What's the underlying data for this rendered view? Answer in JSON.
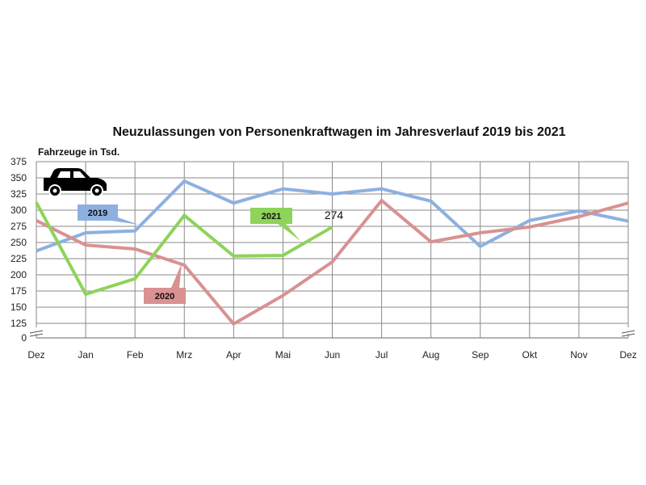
{
  "chart_data": {
    "type": "line",
    "title": "Neuzulassungen von Personenkraftwagen im Jahresverlauf 2019 bis 2021",
    "ylabel": "Fahrzeuge in Tsd.",
    "xlabel": "",
    "categories": [
      "Dez",
      "Jan",
      "Feb",
      "Mrz",
      "Apr",
      "Mai",
      "Jun",
      "Jul",
      "Aug",
      "Sep",
      "Okt",
      "Nov",
      "Dez"
    ],
    "y_ticks": [
      0,
      125,
      150,
      175,
      200,
      225,
      250,
      275,
      300,
      325,
      350,
      375
    ],
    "ylim": [
      0,
      375
    ],
    "axis_break": "between 0 and 125",
    "grid": true,
    "series": [
      {
        "name": "2019",
        "color": "#8db0e0",
        "values": [
          237,
          265,
          268,
          345,
          311,
          333,
          325,
          333,
          314,
          244,
          284,
          299,
          283
        ]
      },
      {
        "name": "2020",
        "color": "#d99191",
        "values": [
          284,
          246,
          240,
          215,
          120,
          168,
          220,
          315,
          251,
          265,
          274,
          290,
          311
        ]
      },
      {
        "name": "2021",
        "color": "#8ed35a",
        "values": [
          312,
          170,
          194,
          292,
          229,
          230,
          274,
          null,
          null,
          null,
          null,
          null,
          null
        ]
      }
    ],
    "annotations": [
      {
        "series": "2021",
        "category": "Jun",
        "text": "274"
      }
    ],
    "icon": "car-icon"
  }
}
